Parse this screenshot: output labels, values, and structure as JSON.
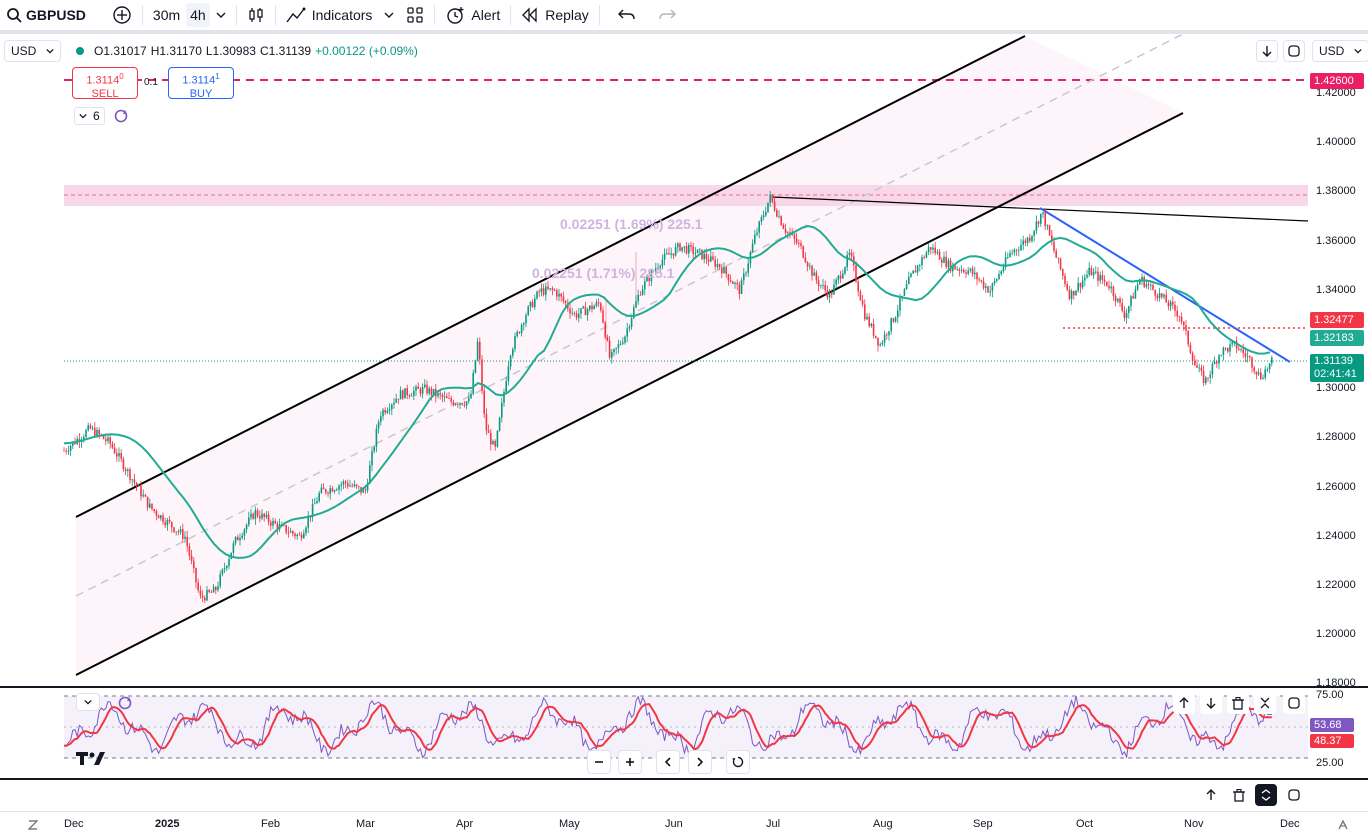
{
  "toolbar": {
    "symbol": "GBPUSD",
    "interval_1": "30m",
    "interval_2": "4h",
    "indicators_label": "Indicators",
    "alert_label": "Alert",
    "replay_label": "Replay"
  },
  "legend": {
    "currency_left": "USD",
    "currency_right": "USD",
    "open": "O1.31017",
    "high": "H1.31170",
    "low": "L1.30983",
    "close": "C1.31139",
    "change": "+0.00122 (+0.09%)",
    "indicator_count": "6"
  },
  "trade": {
    "sell_price": "1.3114",
    "sell_super": "0",
    "sell_label": "SELL",
    "buy_price": "1.3114",
    "buy_super": "1",
    "buy_label": "BUY",
    "spread": "0.1"
  },
  "price_axis": {
    "ticks": [
      "1.42000",
      "1.40000",
      "1.38000",
      "1.36000",
      "1.34000",
      "1.32000",
      "1.30000",
      "1.28000",
      "1.26000",
      "1.24000",
      "1.22000",
      "1.20000",
      "1.18000"
    ],
    "tag_alert": "1.42600",
    "tag_resistance": "1.32477",
    "tag_ma": "1.32183",
    "tag_last": "1.31139",
    "tag_countdown": "02:41:41"
  },
  "fib_labels": {
    "upper": "0.02251 (1.69%) 225.1",
    "lower": "0.02251 (1.71%) 225.1"
  },
  "time_axis": {
    "labels": [
      "Dec",
      "2025",
      "Feb",
      "Mar",
      "Apr",
      "May",
      "Jun",
      "Jul",
      "Aug",
      "Sep",
      "Oct",
      "Nov",
      "Dec"
    ]
  },
  "rsi": {
    "level_high": "75.00",
    "level_low": "25.00",
    "value_rsi": "53.68",
    "value_ma": "48.37"
  },
  "colors": {
    "up": "#089981",
    "down": "#f23645",
    "ma": "#22ab94",
    "trend_blue": "#2962ff",
    "alert_red": "#e91e63",
    "rsi_line": "#7e57c2",
    "rsi_ma": "#f23645"
  },
  "icons": {
    "search": "search-icon",
    "add": "plus-circle-icon",
    "candles": "candlestick-icon",
    "indicators": "indicators-icon",
    "layout": "grid-icon",
    "alert": "alarm-icon",
    "replay": "rewind-icon",
    "undo": "undo-icon",
    "redo": "redo-icon"
  }
}
